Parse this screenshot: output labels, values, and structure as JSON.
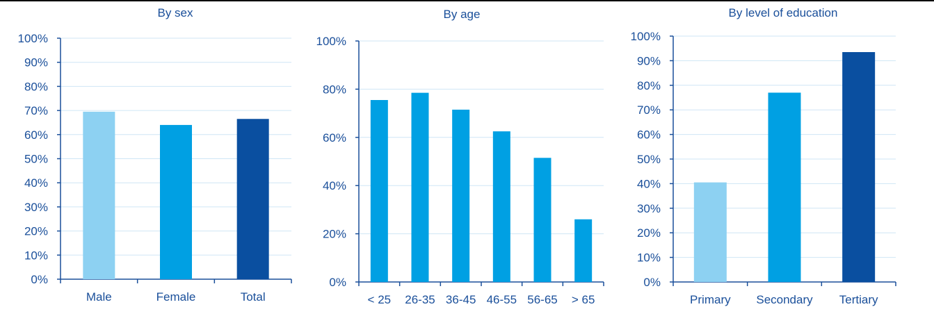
{
  "colors": {
    "text": "#1a4f9a",
    "axis": "#1a4f9a",
    "grid": "#cfe6f5",
    "light_blue": "#8dd1f2",
    "mid_blue": "#00a0e3",
    "dark_blue": "#0a4fa0"
  },
  "chart_data": [
    {
      "type": "bar",
      "title": "By sex",
      "categories": [
        "Male",
        "Female",
        "Total"
      ],
      "values": [
        69.5,
        64,
        66.5
      ],
      "bar_colors": [
        "#8dd1f2",
        "#00a0e3",
        "#0a4fa0"
      ],
      "ylim": [
        0,
        100
      ],
      "yticks": [
        0,
        10,
        20,
        30,
        40,
        50,
        60,
        70,
        80,
        90,
        100
      ],
      "ytick_labels": [
        "0%",
        "10%",
        "20%",
        "30%",
        "40%",
        "50%",
        "60%",
        "70%",
        "80%",
        "90%",
        "100%"
      ],
      "grid": true,
      "xlabel": "",
      "ylabel": ""
    },
    {
      "type": "bar",
      "title": "By age",
      "categories": [
        "< 25",
        "26-35",
        "36-45",
        "46-55",
        "56-65",
        "> 65"
      ],
      "values": [
        75.5,
        78.5,
        71.5,
        62.5,
        51.5,
        26
      ],
      "bar_colors": [
        "#00a0e3",
        "#00a0e3",
        "#00a0e3",
        "#00a0e3",
        "#00a0e3",
        "#00a0e3"
      ],
      "ylim": [
        0,
        100
      ],
      "yticks": [
        0,
        20,
        40,
        60,
        80,
        100
      ],
      "ytick_labels": [
        "0%",
        "20%",
        "40%",
        "60%",
        "80%",
        "100%"
      ],
      "grid": true,
      "xlabel": "",
      "ylabel": ""
    },
    {
      "type": "bar",
      "title": "By level of education",
      "categories": [
        "Primary",
        "Secondary",
        "Tertiary"
      ],
      "values": [
        40.5,
        77,
        93.5
      ],
      "bar_colors": [
        "#8dd1f2",
        "#00a0e3",
        "#0a4fa0"
      ],
      "ylim": [
        0,
        100
      ],
      "yticks": [
        0,
        10,
        20,
        30,
        40,
        50,
        60,
        70,
        80,
        90,
        100
      ],
      "ytick_labels": [
        "0%",
        "10%",
        "20%",
        "30%",
        "40%",
        "50%",
        "60%",
        "70%",
        "80%",
        "90%",
        "100%"
      ],
      "grid": true,
      "xlabel": "",
      "ylabel": ""
    }
  ]
}
